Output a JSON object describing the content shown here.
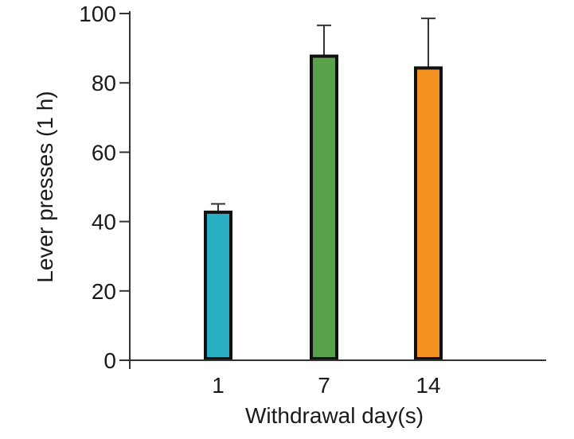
{
  "chart_data": {
    "type": "bar",
    "title": "",
    "xlabel": "Withdrawal day(s)",
    "ylabel": "Lever presses (1 h)",
    "categories": [
      "1",
      "7",
      "14"
    ],
    "values": [
      42.7,
      87.7,
      84.3
    ],
    "error_upper": [
      45.1,
      96.6,
      98.6
    ],
    "colors": [
      "#2aaec4",
      "#5aa14c",
      "#f39220"
    ],
    "ylim": [
      0,
      100
    ],
    "yticks": [
      0,
      20,
      40,
      60,
      80,
      100
    ],
    "ytick_labels": [
      "0",
      "20",
      "40",
      "60",
      "80",
      "100"
    ],
    "grid": false
  }
}
